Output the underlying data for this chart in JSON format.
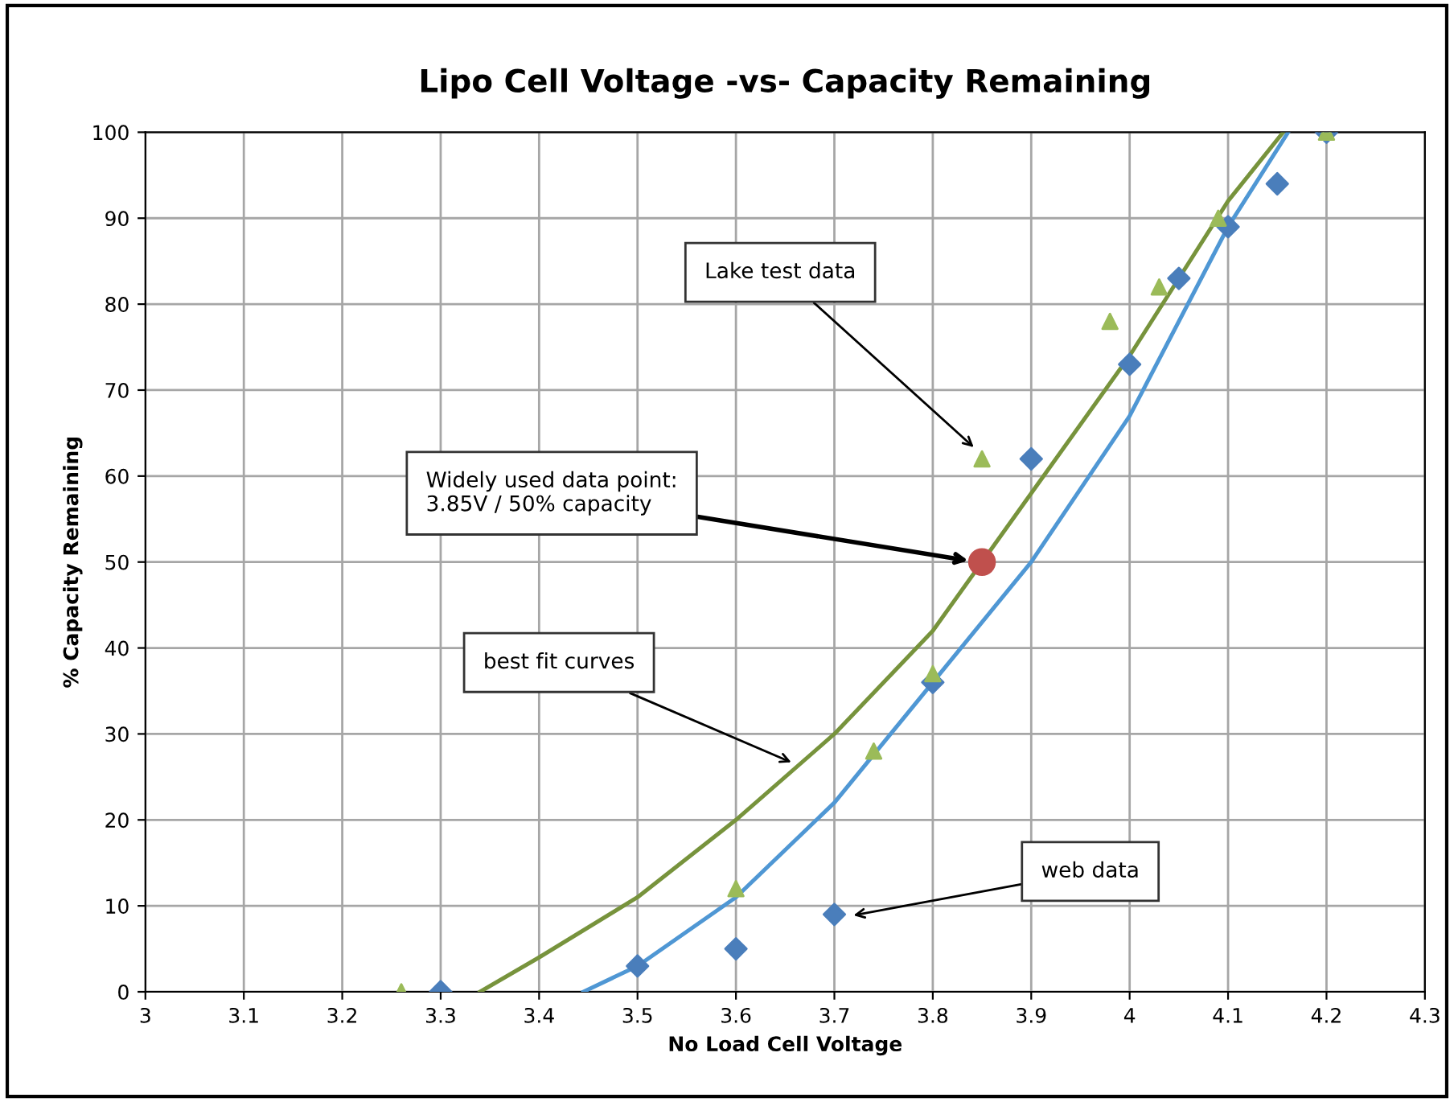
{
  "chart_data": {
    "type": "scatter",
    "title": "Lipo Cell Voltage -vs- Capacity Remaining",
    "xlabel": "No Load Cell Voltage",
    "ylabel": "% Capacity Remaining",
    "xlim": [
      3,
      4.3
    ],
    "ylim": [
      0,
      100
    ],
    "xticks": [
      3,
      {
        "value": 3.1,
        "label": "3.1"
      },
      {
        "value": 3.2,
        "label": "3.2"
      },
      {
        "value": 3.3,
        "label": "3.3"
      },
      {
        "value": 3.4,
        "label": "3.4"
      },
      {
        "value": 3.5,
        "label": "3.5"
      },
      {
        "value": 3.6,
        "label": "3.6"
      },
      {
        "value": 3.7,
        "label": "3.7"
      },
      {
        "value": 3.8,
        "label": "3.8"
      },
      {
        "value": 3.9,
        "label": "3.9"
      },
      {
        "value": 4,
        "label": "4"
      },
      {
        "value": 4.1,
        "label": "4.1"
      },
      {
        "value": 4.2,
        "label": "4.2"
      },
      {
        "value": 4.3,
        "label": "4.3"
      }
    ],
    "yticks": [
      0,
      10,
      20,
      30,
      40,
      50,
      60,
      70,
      80,
      90,
      100
    ],
    "grid": true,
    "legend": false,
    "series": [
      {
        "type": "scatter",
        "marker": "diamond",
        "color": "#4a7ebb",
        "x": [
          3.3,
          3.5,
          3.6,
          3.7,
          3.8,
          3.9,
          4.0,
          4.05,
          4.1,
          4.15,
          4.2
        ],
        "values": [
          0,
          3,
          5,
          9,
          36,
          62,
          73,
          83,
          89,
          94,
          100
        ]
      },
      {
        "type": "scatter",
        "marker": "triangle",
        "color": "#9bbb59",
        "x": [
          3.26,
          3.6,
          3.74,
          3.8,
          3.85,
          3.98,
          4.03,
          4.09,
          4.2
        ],
        "values": [
          0,
          12,
          28,
          37,
          62,
          78,
          82,
          90,
          100
        ]
      },
      {
        "type": "line",
        "marker": "none",
        "line_style": "solid",
        "color": "#77933c",
        "x": [
          3.34,
          3.4,
          3.5,
          3.6,
          3.7,
          3.8,
          3.85,
          3.9,
          4.0,
          4.1,
          4.156
        ],
        "values": [
          0,
          4,
          11,
          20,
          30,
          42,
          50,
          58,
          74,
          92,
          100
        ]
      },
      {
        "type": "line",
        "marker": "none",
        "line_style": "solid",
        "color": "#4f97d4",
        "x": [
          3.445,
          3.5,
          3.6,
          3.7,
          3.8,
          3.9,
          4.0,
          4.1,
          4.161
        ],
        "values": [
          0,
          3,
          11,
          22,
          36,
          50,
          67,
          89,
          100
        ]
      },
      {
        "type": "scatter",
        "marker": "circle",
        "color": "#c0504d",
        "x": [
          3.85
        ],
        "values": [
          50
        ]
      }
    ],
    "annotations": [
      "Lake test data",
      {
        "text": "Widely used data point:\n3.85V / 50% capacity",
        "x": 3.845,
        "y": 50
      },
      "best fit curves",
      "web data"
    ]
  }
}
